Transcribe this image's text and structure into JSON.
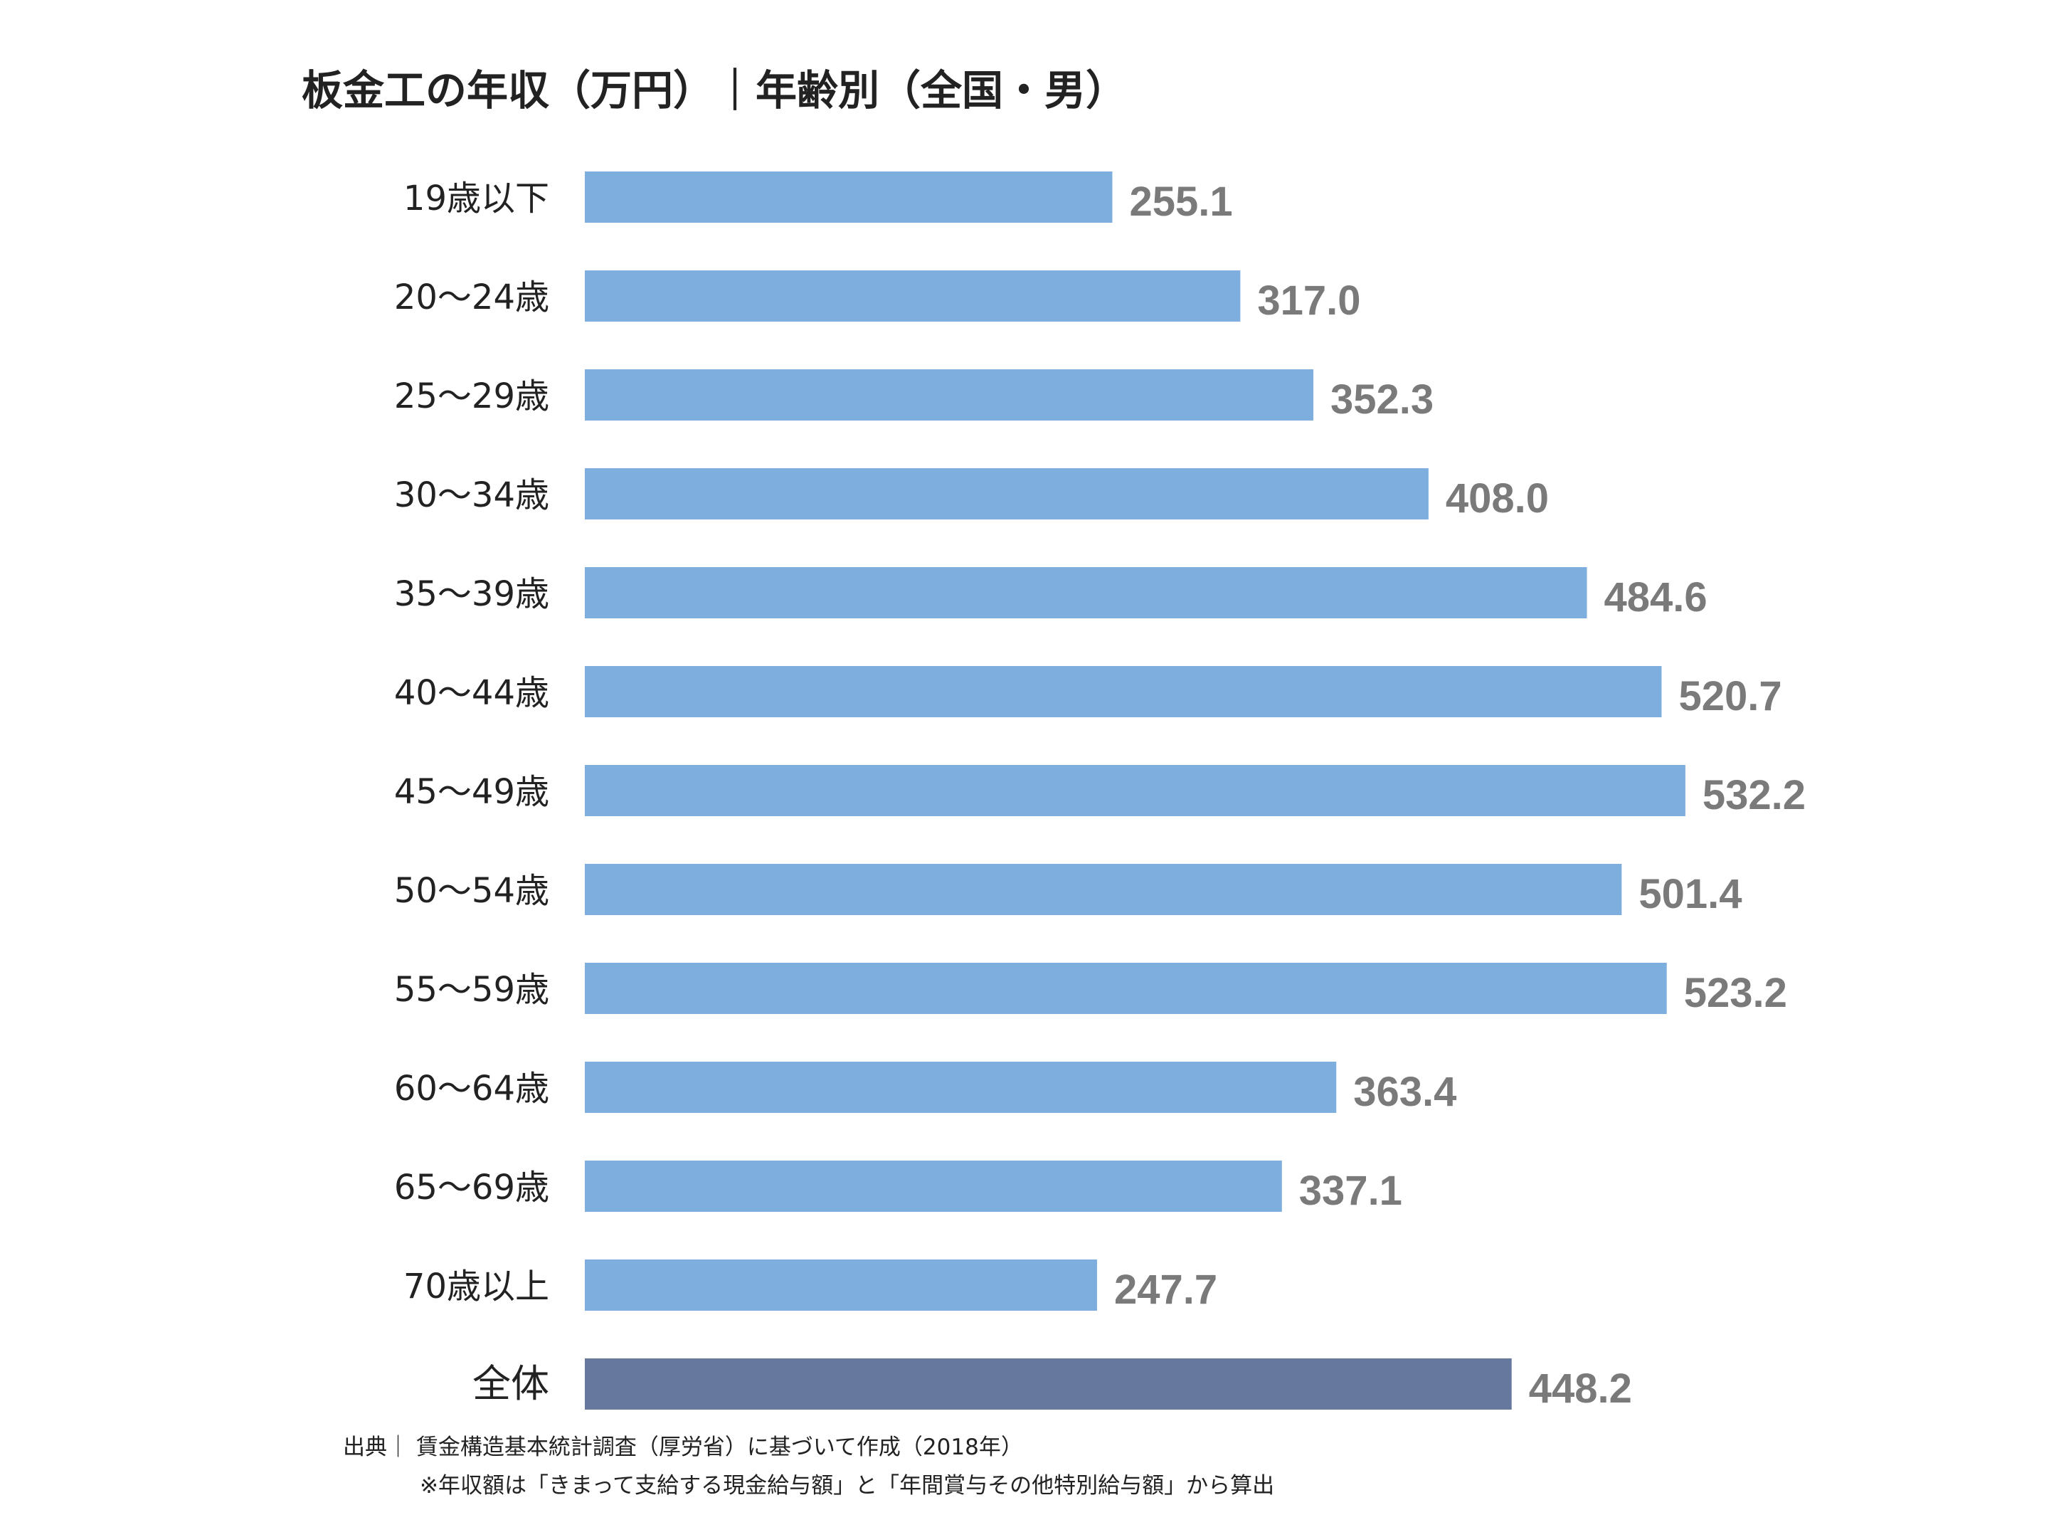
{
  "chart_data": {
    "type": "bar",
    "orientation": "horizontal",
    "title": "板金工の年収（万円）｜年齢別（全国・男）",
    "categories": [
      "19歳以下",
      "20～24歳",
      "25～29歳",
      "30～34歳",
      "35～39歳",
      "40～44歳",
      "45～49歳",
      "50～54歳",
      "55～59歳",
      "60～64歳",
      "65～69歳",
      "70歳以上",
      "全体"
    ],
    "values": [
      255.1,
      317.0,
      352.3,
      408.0,
      484.6,
      520.7,
      532.2,
      501.4,
      523.2,
      363.4,
      337.1,
      247.7,
      448.2
    ],
    "value_labels": [
      "255.1",
      "317.0",
      "352.3",
      "408.0",
      "484.6",
      "520.7",
      "532.2",
      "501.4",
      "523.2",
      "363.4",
      "337.1",
      "247.7",
      "448.2"
    ],
    "xlim": [
      0,
      610
    ],
    "grid": false,
    "legend": "none",
    "colors": {
      "bar": "#7daedd",
      "total_bar": "#67789f",
      "value_label": "#7a7a7a",
      "category_label": "#222222"
    }
  },
  "source": {
    "text": "出典｜ 賃金構造基本統計調査（厚労省）に基づいて作成（2018年）",
    "note": "※年収額は「きまって支給する現金給与額」と「年間賞与その他特別給与額」から算出"
  }
}
